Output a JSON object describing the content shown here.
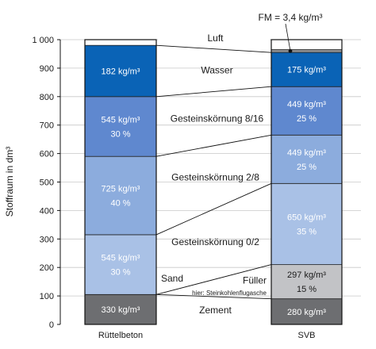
{
  "chart_data": {
    "type": "bar",
    "ylabel": "Stoffraum in dm³",
    "ylim": [
      0,
      1000
    ],
    "yticks": [
      {
        "value": 0,
        "label": "0"
      },
      {
        "value": 100,
        "label": "100"
      },
      {
        "value": 200,
        "label": "200"
      },
      {
        "value": 300,
        "label": "300"
      },
      {
        "value": 400,
        "label": "400"
      },
      {
        "value": 500,
        "label": "500"
      },
      {
        "value": 600,
        "label": "600"
      },
      {
        "value": 700,
        "label": "700"
      },
      {
        "value": 800,
        "label": "800"
      },
      {
        "value": 900,
        "label": "900"
      },
      {
        "value": 1000,
        "label": "1 000"
      }
    ],
    "categories": [
      "Rüttelbeton",
      "SVB"
    ],
    "components": [
      {
        "key": "zement",
        "label": "Zement",
        "color": "#6d6e71"
      },
      {
        "key": "fueller",
        "label": "Füller",
        "sublabel": "hier: Steinkohlenflugasche",
        "color": "#c2c3c6"
      },
      {
        "key": "sand",
        "label": "Gesteinskörnung 0/2",
        "side_label": "Sand",
        "color": "#a9c1e6"
      },
      {
        "key": "k28",
        "label": "Gesteinskörnung 2/8",
        "color": "#8cacdd"
      },
      {
        "key": "k816",
        "label": "Gesteinskörnung 8/16",
        "color": "#5f88cf"
      },
      {
        "key": "wasser",
        "label": "Wasser",
        "color": "#0a63b6"
      },
      {
        "key": "fm",
        "label": "FM = 3,4 kg/m³",
        "color": "#8d8e90"
      },
      {
        "key": "luft",
        "label": "Luft",
        "color": "#ffffff"
      }
    ],
    "bars": [
      {
        "name": "Rüttelbeton",
        "segments": [
          {
            "key": "zement",
            "from": 0,
            "to": 105,
            "mass": "330 kg/m³",
            "percent": ""
          },
          {
            "key": "sand",
            "from": 105,
            "to": 315,
            "mass": "545 kg/m³",
            "percent": "30 %"
          },
          {
            "key": "k28",
            "from": 315,
            "to": 590,
            "mass": "725 kg/m³",
            "percent": "40 %"
          },
          {
            "key": "k816",
            "from": 590,
            "to": 800,
            "mass": "545 kg/m³",
            "percent": "30 %"
          },
          {
            "key": "wasser",
            "from": 800,
            "to": 980,
            "mass": "182 kg/m³",
            "percent": ""
          },
          {
            "key": "luft",
            "from": 980,
            "to": 1000,
            "mass": "",
            "percent": ""
          }
        ]
      },
      {
        "name": "SVB",
        "segments": [
          {
            "key": "zement",
            "from": 0,
            "to": 90,
            "mass": "280 kg/m³",
            "percent": ""
          },
          {
            "key": "fueller",
            "from": 90,
            "to": 210,
            "mass": "297 kg/m³",
            "percent": "15 %"
          },
          {
            "key": "sand",
            "from": 210,
            "to": 495,
            "mass": "650 kg/m³",
            "percent": "35 %"
          },
          {
            "key": "k28",
            "from": 495,
            "to": 665,
            "mass": "449 kg/m³",
            "percent": "25 %"
          },
          {
            "key": "k816",
            "from": 665,
            "to": 835,
            "mass": "449 kg/m³",
            "percent": "25 %"
          },
          {
            "key": "wasser",
            "from": 835,
            "to": 955,
            "mass": "175 kg/m³",
            "percent": ""
          },
          {
            "key": "fm",
            "from": 955,
            "to": 965,
            "mass": "",
            "percent": ""
          },
          {
            "key": "luft",
            "from": 965,
            "to": 1000,
            "mass": "",
            "percent": ""
          }
        ]
      }
    ],
    "annotations": {
      "fm_label": "FM = 3,4 kg/m³",
      "luft_label": "Luft"
    }
  }
}
